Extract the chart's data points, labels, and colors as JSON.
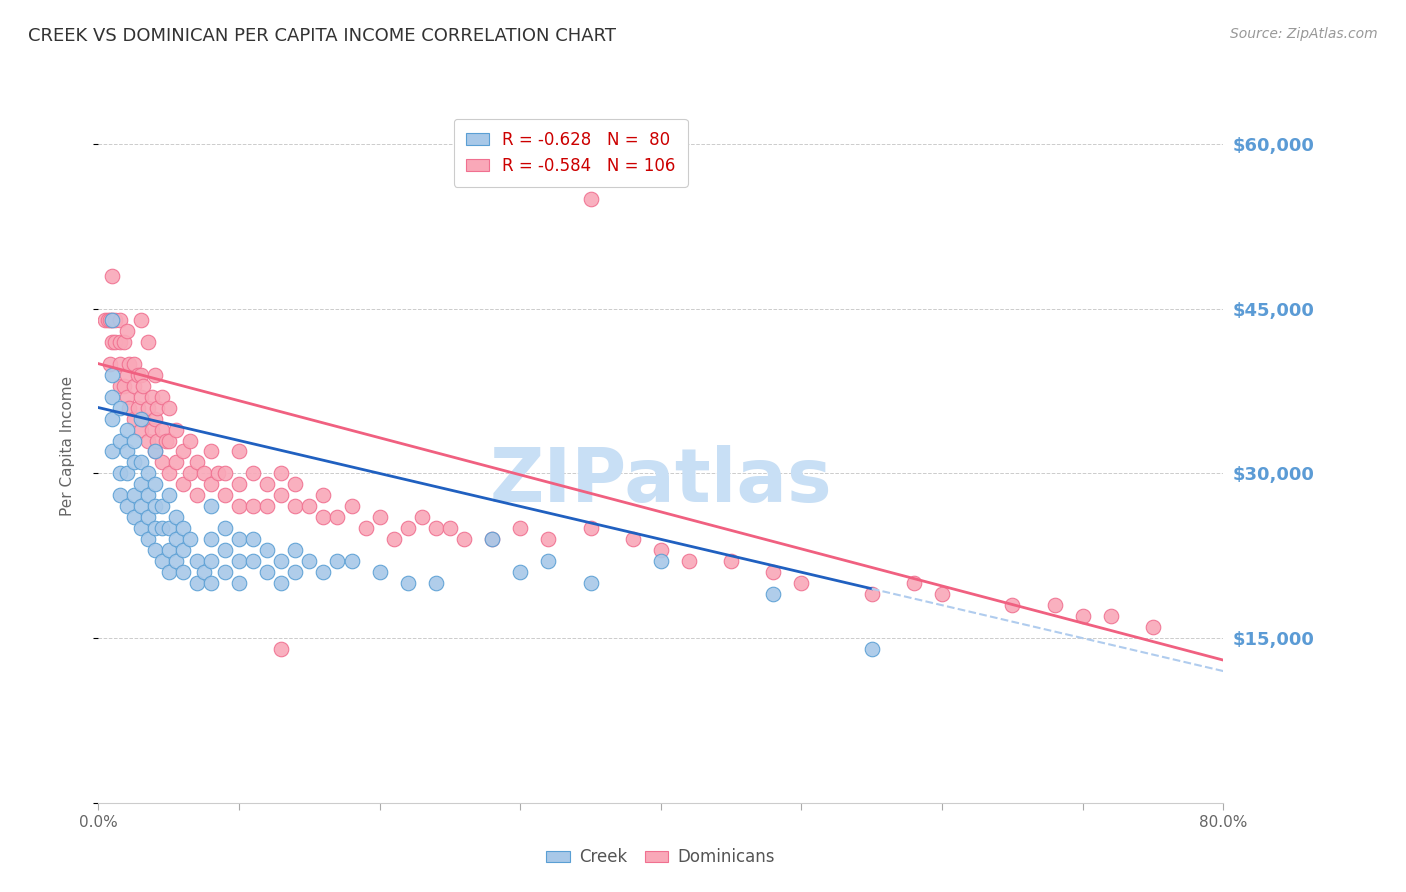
{
  "title": "CREEK VS DOMINICAN PER CAPITA INCOME CORRELATION CHART",
  "source": "Source: ZipAtlas.com",
  "ylabel": "Per Capita Income",
  "xlim": [
    0.0,
    0.8
  ],
  "ylim": [
    0,
    65000
  ],
  "yticks": [
    0,
    15000,
    30000,
    45000,
    60000
  ],
  "ytick_labels": [
    "",
    "$15,000",
    "$30,000",
    "$45,000",
    "$60,000"
  ],
  "xticks": [
    0.0,
    0.1,
    0.2,
    0.3,
    0.4,
    0.5,
    0.6,
    0.7,
    0.8
  ],
  "xtick_labels": [
    "0.0%",
    "",
    "",
    "",
    "",
    "",
    "",
    "",
    "80.0%"
  ],
  "title_color": "#333333",
  "axis_label_color": "#5b9bd5",
  "source_color": "#999999",
  "background_color": "#ffffff",
  "grid_color": "#cccccc",
  "watermark_text": "ZIPatlas",
  "watermark_color": "#c8dff5",
  "creek_color": "#a8c8e8",
  "dominican_color": "#f9a8b8",
  "creek_edge_color": "#5a9fd4",
  "dominican_edge_color": "#f07090",
  "regression_creek_color": "#2060c0",
  "regression_dominican_color": "#f06080",
  "regression_creek_dashed_color": "#b0ccee",
  "creek_line_x": [
    0.0,
    0.55,
    0.8
  ],
  "creek_line_y": [
    36000,
    19500,
    12000
  ],
  "dominican_line_x": [
    0.0,
    0.8
  ],
  "dominican_line_y": [
    40000,
    13000
  ],
  "legend_line1": "R = -0.628   N =  80",
  "legend_line2": "R = -0.584   N = 106",
  "creek_x": [
    0.01,
    0.01,
    0.01,
    0.01,
    0.01,
    0.015,
    0.015,
    0.015,
    0.015,
    0.02,
    0.02,
    0.02,
    0.02,
    0.025,
    0.025,
    0.025,
    0.025,
    0.03,
    0.03,
    0.03,
    0.03,
    0.03,
    0.035,
    0.035,
    0.035,
    0.035,
    0.04,
    0.04,
    0.04,
    0.04,
    0.04,
    0.045,
    0.045,
    0.045,
    0.05,
    0.05,
    0.05,
    0.05,
    0.055,
    0.055,
    0.055,
    0.06,
    0.06,
    0.06,
    0.065,
    0.07,
    0.07,
    0.075,
    0.08,
    0.08,
    0.08,
    0.08,
    0.09,
    0.09,
    0.09,
    0.1,
    0.1,
    0.1,
    0.11,
    0.11,
    0.12,
    0.12,
    0.13,
    0.13,
    0.14,
    0.14,
    0.15,
    0.16,
    0.17,
    0.18,
    0.2,
    0.22,
    0.24,
    0.28,
    0.3,
    0.32,
    0.35,
    0.4,
    0.48,
    0.55
  ],
  "creek_y": [
    32000,
    35000,
    37000,
    39000,
    44000,
    28000,
    30000,
    33000,
    36000,
    27000,
    30000,
    32000,
    34000,
    26000,
    28000,
    31000,
    33000,
    25000,
    27000,
    29000,
    31000,
    35000,
    24000,
    26000,
    28000,
    30000,
    23000,
    25000,
    27000,
    29000,
    32000,
    22000,
    25000,
    27000,
    21000,
    23000,
    25000,
    28000,
    22000,
    24000,
    26000,
    21000,
    23000,
    25000,
    24000,
    20000,
    22000,
    21000,
    20000,
    22000,
    24000,
    27000,
    21000,
    23000,
    25000,
    20000,
    22000,
    24000,
    22000,
    24000,
    21000,
    23000,
    20000,
    22000,
    21000,
    23000,
    22000,
    21000,
    22000,
    22000,
    21000,
    20000,
    20000,
    24000,
    21000,
    22000,
    20000,
    22000,
    19000,
    14000
  ],
  "dominican_x": [
    0.005,
    0.007,
    0.008,
    0.008,
    0.01,
    0.01,
    0.01,
    0.012,
    0.012,
    0.015,
    0.015,
    0.015,
    0.015,
    0.018,
    0.018,
    0.02,
    0.02,
    0.02,
    0.022,
    0.022,
    0.025,
    0.025,
    0.025,
    0.028,
    0.028,
    0.03,
    0.03,
    0.03,
    0.03,
    0.032,
    0.032,
    0.035,
    0.035,
    0.035,
    0.038,
    0.038,
    0.04,
    0.04,
    0.04,
    0.042,
    0.042,
    0.045,
    0.045,
    0.045,
    0.048,
    0.05,
    0.05,
    0.05,
    0.055,
    0.055,
    0.06,
    0.06,
    0.065,
    0.065,
    0.07,
    0.07,
    0.075,
    0.08,
    0.08,
    0.085,
    0.09,
    0.09,
    0.1,
    0.1,
    0.1,
    0.11,
    0.11,
    0.12,
    0.12,
    0.13,
    0.13,
    0.14,
    0.14,
    0.15,
    0.16,
    0.16,
    0.17,
    0.18,
    0.19,
    0.2,
    0.21,
    0.22,
    0.23,
    0.24,
    0.25,
    0.26,
    0.28,
    0.3,
    0.32,
    0.35,
    0.38,
    0.4,
    0.42,
    0.45,
    0.48,
    0.5,
    0.55,
    0.58,
    0.6,
    0.65,
    0.68,
    0.7,
    0.72,
    0.75,
    0.35,
    0.13
  ],
  "dominican_y": [
    44000,
    44000,
    40000,
    44000,
    48000,
    42000,
    44000,
    42000,
    44000,
    40000,
    38000,
    42000,
    44000,
    38000,
    42000,
    37000,
    39000,
    43000,
    36000,
    40000,
    35000,
    38000,
    40000,
    36000,
    39000,
    34000,
    37000,
    39000,
    44000,
    35000,
    38000,
    33000,
    36000,
    42000,
    34000,
    37000,
    32000,
    35000,
    39000,
    33000,
    36000,
    31000,
    34000,
    37000,
    33000,
    30000,
    33000,
    36000,
    31000,
    34000,
    29000,
    32000,
    30000,
    33000,
    28000,
    31000,
    30000,
    29000,
    32000,
    30000,
    28000,
    30000,
    27000,
    29000,
    32000,
    27000,
    30000,
    27000,
    29000,
    28000,
    30000,
    27000,
    29000,
    27000,
    26000,
    28000,
    26000,
    27000,
    25000,
    26000,
    24000,
    25000,
    26000,
    25000,
    25000,
    24000,
    24000,
    25000,
    24000,
    25000,
    24000,
    23000,
    22000,
    22000,
    21000,
    20000,
    19000,
    20000,
    19000,
    18000,
    18000,
    17000,
    17000,
    16000,
    55000,
    14000
  ]
}
